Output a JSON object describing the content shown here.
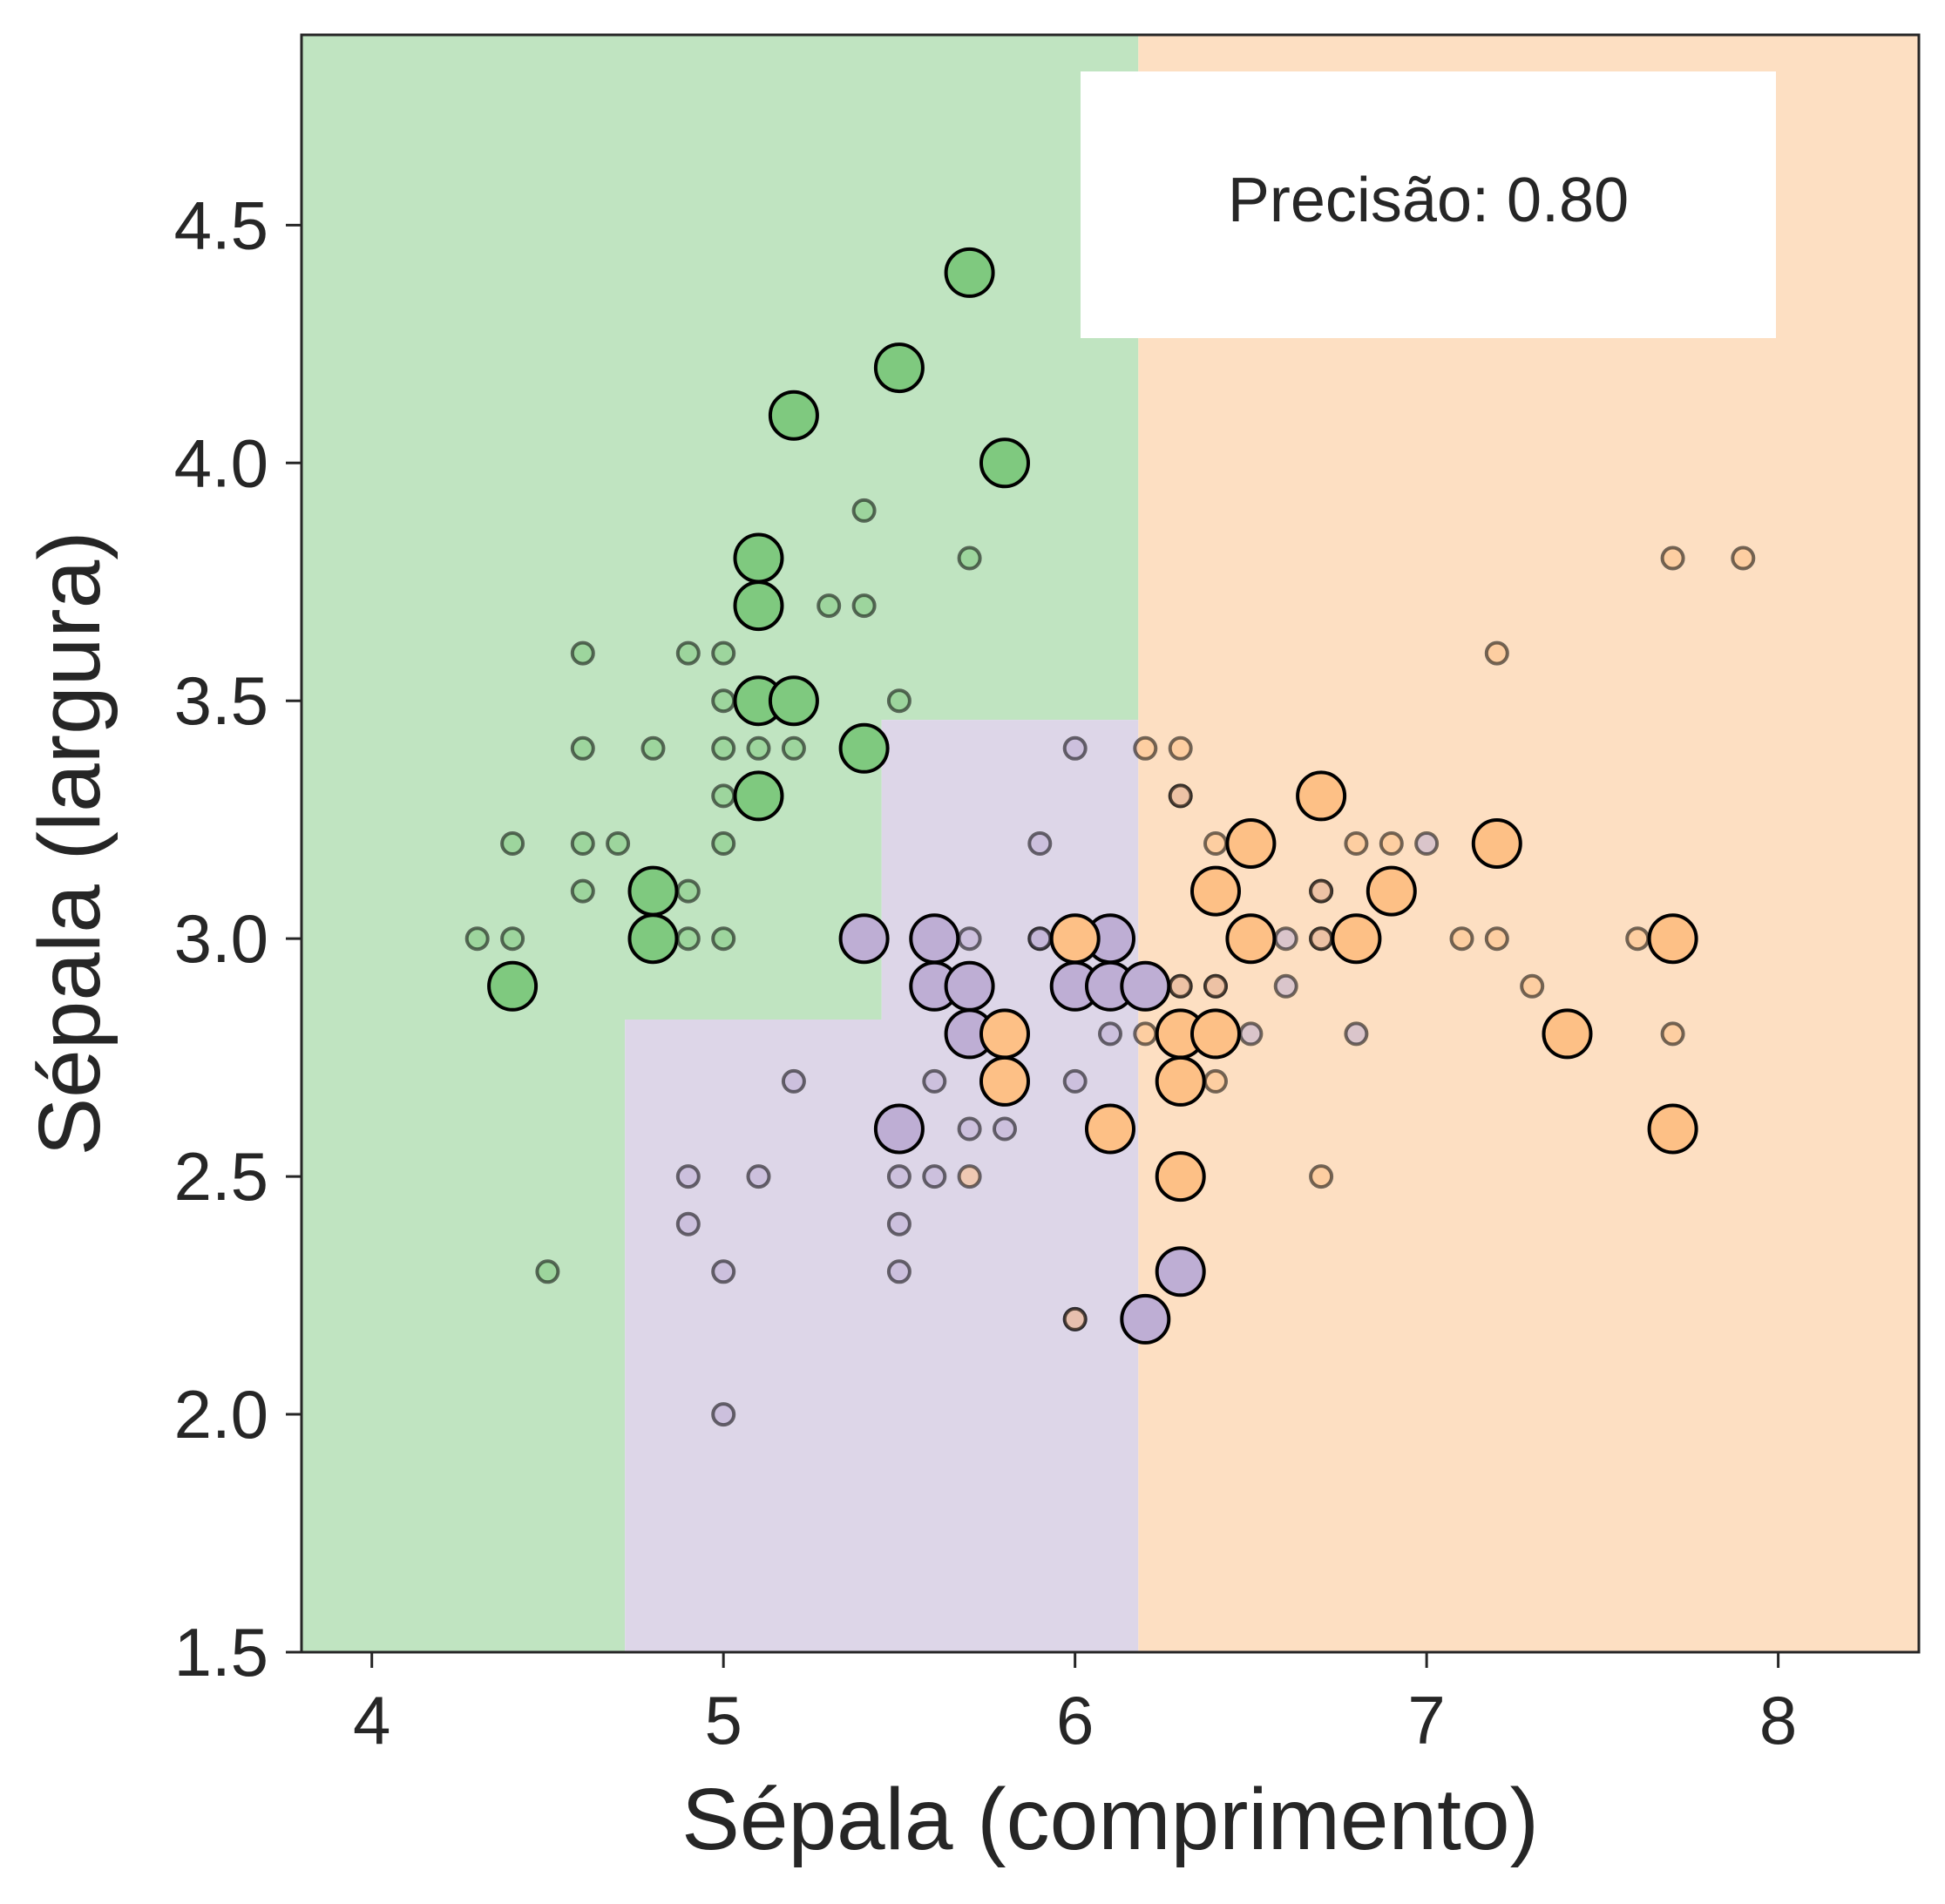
{
  "chart_data": {
    "type": "scatter",
    "xlabel": "Sépala (comprimento)",
    "ylabel": "Sépala (largura)",
    "xlim": [
      3.8,
      8.4
    ],
    "ylim": [
      1.5,
      4.9
    ],
    "x_ticks": [
      "4",
      "5",
      "6",
      "7",
      "8"
    ],
    "y_ticks": [
      "1.5",
      "2.0",
      "2.5",
      "3.0",
      "3.5",
      "4.0",
      "4.5"
    ],
    "grid": false,
    "annotation": "Precisão: 0.80",
    "class_colors": [
      "#7fc97f",
      "#beaed4",
      "#fdc086"
    ],
    "region_colors": [
      "#c0e4c1",
      "#ddd6e8",
      "#fddfc2"
    ],
    "decision_regions": [
      {
        "class": 0,
        "polygon": [
          [
            3.8,
            1.5
          ],
          [
            4.72,
            1.5
          ],
          [
            4.72,
            2.83
          ],
          [
            5.45,
            2.83
          ],
          [
            5.45,
            3.46
          ],
          [
            6.18,
            3.46
          ],
          [
            6.18,
            4.9
          ],
          [
            3.8,
            4.9
          ]
        ]
      },
      {
        "class": 1,
        "polygon": [
          [
            4.72,
            1.5
          ],
          [
            6.18,
            1.5
          ],
          [
            6.18,
            3.46
          ],
          [
            5.45,
            3.46
          ],
          [
            5.45,
            2.83
          ],
          [
            4.72,
            2.83
          ]
        ]
      },
      {
        "class": 2,
        "polygon": [
          [
            6.18,
            1.5
          ],
          [
            8.4,
            1.5
          ],
          [
            8.4,
            4.9
          ],
          [
            6.18,
            4.9
          ]
        ]
      }
    ],
    "series": [
      {
        "class": 0,
        "role": "train",
        "points": [
          [
            5.4,
            3.9
          ],
          [
            5.7,
            3.8
          ],
          [
            5.3,
            3.7
          ],
          [
            5.4,
            3.7
          ],
          [
            4.6,
            3.6
          ],
          [
            4.9,
            3.6
          ],
          [
            5.0,
            3.6
          ],
          [
            5.0,
            3.5
          ],
          [
            5.5,
            3.5
          ],
          [
            4.6,
            3.4
          ],
          [
            4.8,
            3.4
          ],
          [
            5.0,
            3.4
          ],
          [
            5.1,
            3.4
          ],
          [
            5.2,
            3.4
          ],
          [
            4.4,
            3.2
          ],
          [
            4.6,
            3.2
          ],
          [
            4.7,
            3.2
          ],
          [
            5.0,
            3.2
          ],
          [
            5.0,
            3.3
          ],
          [
            4.6,
            3.1
          ],
          [
            4.9,
            3.1
          ],
          [
            4.3,
            3.0
          ],
          [
            4.4,
            3.0
          ],
          [
            4.9,
            3.0
          ],
          [
            5.0,
            3.0
          ],
          [
            4.5,
            2.3
          ]
        ]
      },
      {
        "class": 1,
        "role": "train",
        "points": [
          [
            6.0,
            3.4
          ],
          [
            5.9,
            3.2
          ],
          [
            5.7,
            3.0
          ],
          [
            5.9,
            3.0
          ],
          [
            6.6,
            3.0
          ],
          [
            6.7,
            3.1
          ],
          [
            6.4,
            2.9
          ],
          [
            6.6,
            2.9
          ],
          [
            5.6,
            2.9
          ],
          [
            6.1,
            2.8
          ],
          [
            6.8,
            2.8
          ],
          [
            6.5,
            2.8
          ],
          [
            5.7,
            2.8
          ],
          [
            5.8,
            2.7
          ],
          [
            5.6,
            2.7
          ],
          [
            6.0,
            2.7
          ],
          [
            5.2,
            2.7
          ],
          [
            5.7,
            2.6
          ],
          [
            5.8,
            2.6
          ],
          [
            4.9,
            2.5
          ],
          [
            5.1,
            2.5
          ],
          [
            5.5,
            2.5
          ],
          [
            5.6,
            2.5
          ],
          [
            4.9,
            2.4
          ],
          [
            5.5,
            2.4
          ],
          [
            5.0,
            2.3
          ],
          [
            5.5,
            2.3
          ],
          [
            6.0,
            2.2
          ],
          [
            5.0,
            2.0
          ],
          [
            6.7,
            3.0
          ],
          [
            6.3,
            3.3
          ],
          [
            7.0,
            3.2
          ],
          [
            6.3,
            2.9
          ],
          [
            5.9,
            3.0
          ]
        ]
      },
      {
        "class": 2,
        "role": "train",
        "points": [
          [
            7.7,
            3.8
          ],
          [
            7.9,
            3.8
          ],
          [
            7.2,
            3.6
          ],
          [
            6.2,
            3.4
          ],
          [
            6.3,
            3.4
          ],
          [
            6.3,
            3.3
          ],
          [
            6.4,
            3.2
          ],
          [
            6.8,
            3.2
          ],
          [
            6.9,
            3.2
          ],
          [
            6.7,
            3.1
          ],
          [
            6.7,
            3.0
          ],
          [
            6.8,
            3.0
          ],
          [
            7.1,
            3.0
          ],
          [
            7.2,
            3.0
          ],
          [
            7.6,
            3.0
          ],
          [
            6.3,
            2.9
          ],
          [
            6.4,
            2.9
          ],
          [
            7.3,
            2.9
          ],
          [
            6.2,
            2.8
          ],
          [
            6.3,
            2.8
          ],
          [
            6.4,
            2.8
          ],
          [
            5.8,
            2.8
          ],
          [
            7.7,
            2.8
          ],
          [
            6.4,
            2.7
          ],
          [
            5.8,
            2.7
          ],
          [
            6.7,
            2.5
          ],
          [
            5.7,
            2.5
          ],
          [
            6.0,
            2.2
          ],
          [
            6.0,
            3.0
          ]
        ]
      },
      {
        "class": 0,
        "role": "test",
        "points": [
          [
            5.7,
            4.4
          ],
          [
            5.5,
            4.2
          ],
          [
            5.2,
            4.1
          ],
          [
            5.8,
            4.0
          ],
          [
            5.1,
            3.8
          ],
          [
            5.1,
            3.7
          ],
          [
            5.1,
            3.5
          ],
          [
            5.2,
            3.5
          ],
          [
            5.4,
            3.4
          ],
          [
            5.1,
            3.3
          ],
          [
            4.8,
            3.1
          ],
          [
            4.8,
            3.0
          ],
          [
            4.4,
            2.9
          ]
        ]
      },
      {
        "class": 1,
        "role": "test",
        "points": [
          [
            5.4,
            3.0
          ],
          [
            5.6,
            3.0
          ],
          [
            6.1,
            3.0
          ],
          [
            5.6,
            2.9
          ],
          [
            5.7,
            2.9
          ],
          [
            6.0,
            2.9
          ],
          [
            6.1,
            2.9
          ],
          [
            6.2,
            2.9
          ],
          [
            5.7,
            2.8
          ],
          [
            5.5,
            2.6
          ],
          [
            6.3,
            2.3
          ],
          [
            6.2,
            2.2
          ]
        ]
      },
      {
        "class": 2,
        "role": "test",
        "points": [
          [
            6.7,
            3.3
          ],
          [
            6.5,
            3.2
          ],
          [
            7.2,
            3.2
          ],
          [
            6.4,
            3.1
          ],
          [
            6.9,
            3.1
          ],
          [
            6.0,
            3.0
          ],
          [
            6.5,
            3.0
          ],
          [
            6.8,
            3.0
          ],
          [
            7.7,
            3.0
          ],
          [
            5.8,
            2.8
          ],
          [
            6.3,
            2.8
          ],
          [
            6.4,
            2.8
          ],
          [
            7.4,
            2.8
          ],
          [
            5.8,
            2.7
          ],
          [
            6.3,
            2.7
          ],
          [
            6.1,
            2.6
          ],
          [
            7.7,
            2.6
          ],
          [
            6.3,
            2.5
          ]
        ]
      }
    ]
  }
}
